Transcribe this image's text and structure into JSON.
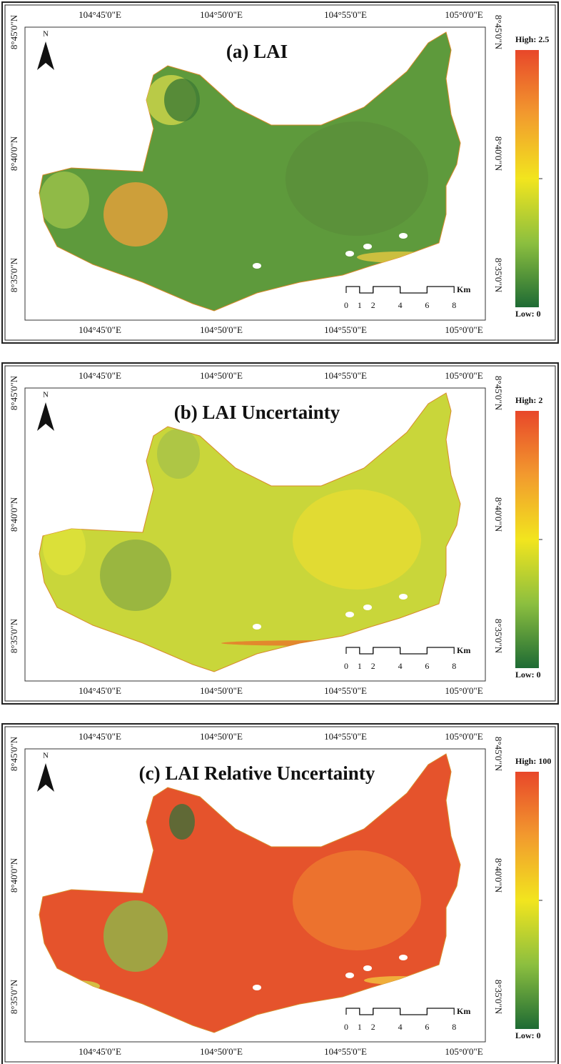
{
  "lon_labels": [
    "104°45'0\"E",
    "104°50'0\"E",
    "104°55'0\"E",
    "105°0'0\"E"
  ],
  "lat_labels": [
    "8°45'0\"N",
    "8°40'0\"N",
    "8°35'0\"N"
  ],
  "north": "N",
  "scale_bar": {
    "labels": [
      0,
      1,
      2,
      4,
      6,
      8
    ],
    "unit": "Km"
  },
  "panels": [
    {
      "title": "(a) LAI",
      "legend_high": "High: 2.5",
      "legend_low": "Low: 0"
    },
    {
      "title": "(b) LAI Uncertainty",
      "legend_high": "High: 2",
      "legend_low": "Low: 0"
    },
    {
      "title": "(c) LAI Relative Uncertainty",
      "legend_high": "High: 100",
      "legend_low": "Low: 0"
    }
  ]
}
